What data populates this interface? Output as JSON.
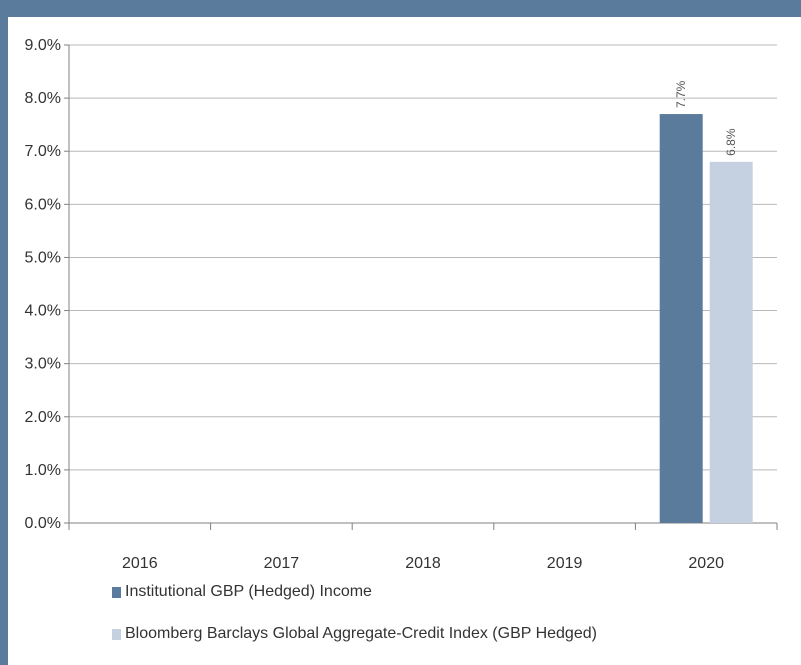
{
  "chart_data": {
    "type": "bar",
    "categories": [
      "2016",
      "2017",
      "2018",
      "2019",
      "2020"
    ],
    "series": [
      {
        "name": "Institutional GBP (Hedged) Income",
        "values": [
          null,
          null,
          null,
          null,
          7.7
        ],
        "color": "#5b7b9c"
      },
      {
        "name": "Bloomberg Barclays Global Aggregate-Credit Index (GBP Hedged)",
        "values": [
          null,
          null,
          null,
          null,
          6.8
        ],
        "color": "#c5d1e1"
      }
    ],
    "data_labels": [
      [
        "",
        "",
        "",
        "",
        "7.7%"
      ],
      [
        "",
        "",
        "",
        "",
        "6.8%"
      ]
    ],
    "y_ticks": [
      "0.0%",
      "1.0%",
      "2.0%",
      "3.0%",
      "4.0%",
      "5.0%",
      "6.0%",
      "7.0%",
      "8.0%",
      "9.0%"
    ],
    "ylim": [
      0,
      9
    ],
    "grid": true,
    "legend_position": "bottom"
  },
  "legend": {
    "item_0": "Institutional GBP (Hedged) Income",
    "item_1": "Bloomberg Barclays Global Aggregate-Credit Index (GBP Hedged)"
  }
}
